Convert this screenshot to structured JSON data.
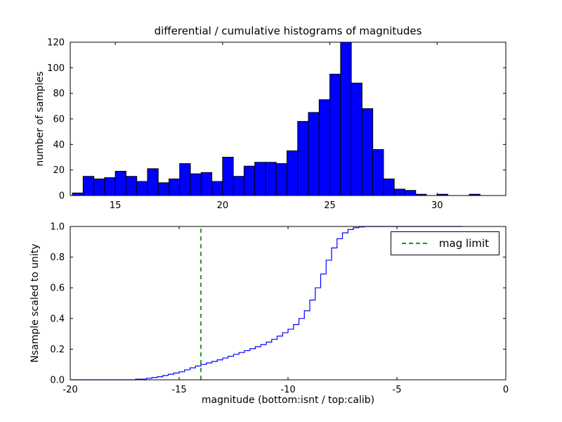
{
  "figure": {
    "background": "#ffffff"
  },
  "chart_data": [
    {
      "type": "bar",
      "subtype": "histogram",
      "title": "differential / cumulative histograms of magnitudes",
      "xlabel": "",
      "ylabel": "number of samples",
      "xlim": [
        12.9,
        33.2
      ],
      "ylim": [
        0,
        120
      ],
      "xticks": [
        15,
        20,
        25,
        30
      ],
      "xticklabels": [
        "15",
        "20",
        "25",
        "30"
      ],
      "yticks": [
        0,
        20,
        40,
        60,
        80,
        100,
        120
      ],
      "yticklabels": [
        "0",
        "20",
        "40",
        "60",
        "80",
        "100",
        "120"
      ],
      "bin_start": 13.0,
      "bin_width": 0.5,
      "values": [
        2,
        15,
        13,
        14,
        19,
        15,
        11,
        21,
        10,
        13,
        25,
        17,
        18,
        11,
        30,
        15,
        23,
        26,
        26,
        25,
        35,
        58,
        65,
        75,
        95,
        120,
        88,
        68,
        36,
        13,
        5,
        4,
        1,
        0,
        1,
        0,
        0,
        1,
        0,
        0
      ],
      "bar_color": "#0000ff",
      "bar_edge_color": "#000000",
      "grid": false,
      "legend": null
    },
    {
      "type": "line",
      "subtype": "cumulative-step",
      "title": "",
      "xlabel": "magnitude (bottom:isnt / top:calib)",
      "ylabel": "Nsample scaled to unity",
      "xlim": [
        -20,
        0
      ],
      "ylim": [
        0.0,
        1.0
      ],
      "xticks": [
        -20,
        -15,
        -10,
        -5,
        0
      ],
      "xticklabels": [
        "-20",
        "-15",
        "-10",
        "-5",
        "0"
      ],
      "yticks": [
        0.0,
        0.2,
        0.4,
        0.6,
        0.8,
        1.0
      ],
      "yticklabels": [
        "0.0",
        "0.2",
        "0.4",
        "0.6",
        "0.8",
        "1.0"
      ],
      "line_color": "#0000ff",
      "steps": [
        [
          -20,
          0
        ],
        [
          -17,
          0.004
        ],
        [
          -16.5,
          0.01
        ],
        [
          -16.25,
          0.015
        ],
        [
          -16,
          0.02
        ],
        [
          -15.75,
          0.028
        ],
        [
          -15.5,
          0.036
        ],
        [
          -15.25,
          0.044
        ],
        [
          -15,
          0.052
        ],
        [
          -14.75,
          0.065
        ],
        [
          -14.5,
          0.078
        ],
        [
          -14.25,
          0.09
        ],
        [
          -14,
          0.1
        ],
        [
          -13.75,
          0.11
        ],
        [
          -13.5,
          0.12
        ],
        [
          -13.25,
          0.13
        ],
        [
          -13,
          0.142
        ],
        [
          -12.75,
          0.154
        ],
        [
          -12.5,
          0.166
        ],
        [
          -12.25,
          0.178
        ],
        [
          -12,
          0.19
        ],
        [
          -11.75,
          0.203
        ],
        [
          -11.5,
          0.216
        ],
        [
          -11.25,
          0.23
        ],
        [
          -11,
          0.246
        ],
        [
          -10.75,
          0.264
        ],
        [
          -10.5,
          0.285
        ],
        [
          -10.25,
          0.307
        ],
        [
          -10,
          0.33
        ],
        [
          -9.75,
          0.36
        ],
        [
          -9.5,
          0.4
        ],
        [
          -9.25,
          0.45
        ],
        [
          -9,
          0.52
        ],
        [
          -8.75,
          0.6
        ],
        [
          -8.5,
          0.69
        ],
        [
          -8.25,
          0.78
        ],
        [
          -8,
          0.86
        ],
        [
          -7.75,
          0.92
        ],
        [
          -7.5,
          0.958
        ],
        [
          -7.25,
          0.98
        ],
        [
          -7,
          0.992
        ],
        [
          -6.75,
          0.997
        ],
        [
          -6.5,
          1
        ],
        [
          -2,
          1
        ]
      ],
      "mag_limit": {
        "x": -14,
        "color": "#008000",
        "style": "dashed",
        "label": "mag limit"
      },
      "legend": {
        "position": "upper right",
        "entries": [
          {
            "label": "mag limit",
            "color": "#008000",
            "style": "dashed"
          }
        ]
      },
      "grid": false
    }
  ]
}
